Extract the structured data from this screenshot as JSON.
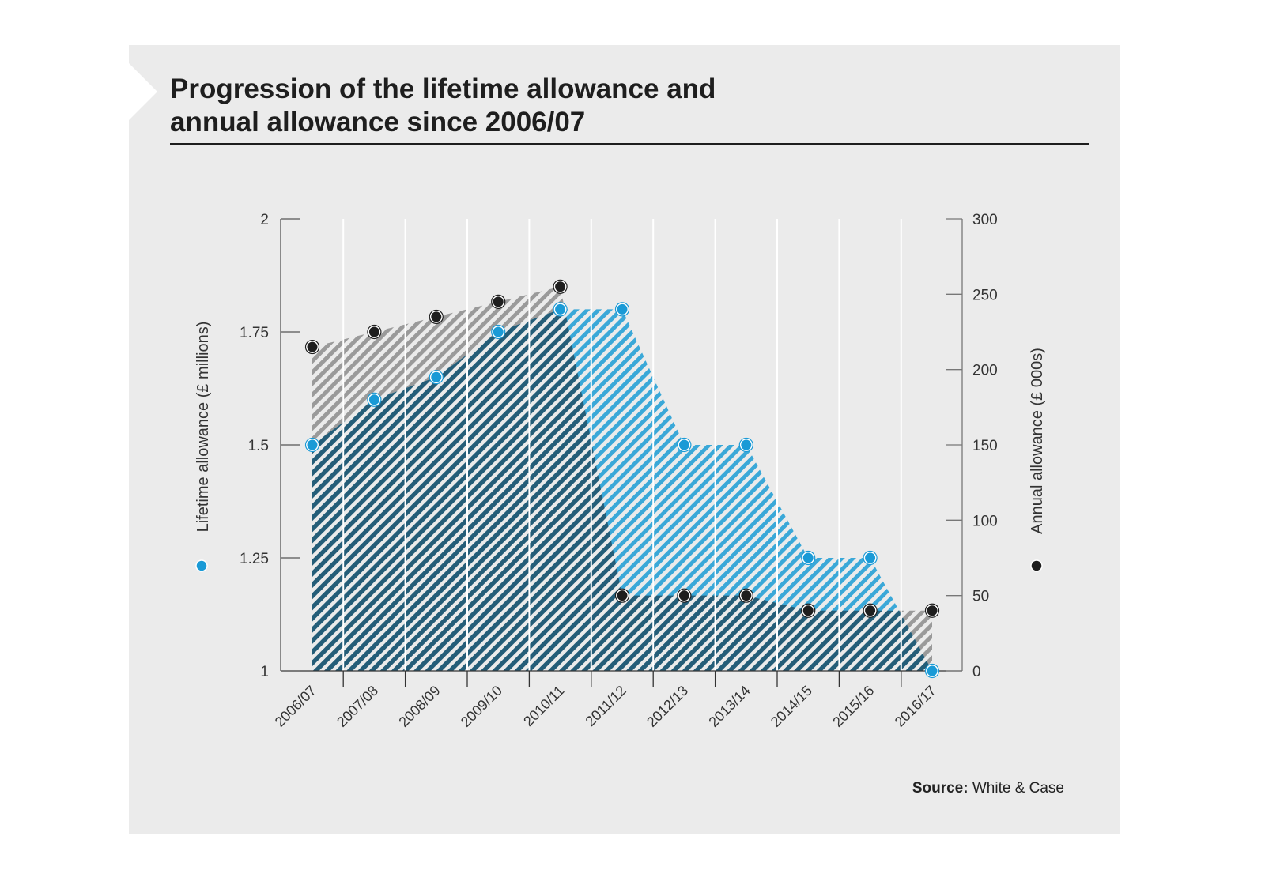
{
  "title_line1": "Progression of the lifetime allowance and",
  "title_line2": "annual allowance since 2006/07",
  "source_label": "Source:",
  "source_text": "White & Case",
  "chart_data": {
    "type": "area",
    "categories": [
      "2006/07",
      "2007/08",
      "2008/09",
      "2009/10",
      "2010/11",
      "2011/12",
      "2012/13",
      "2013/14",
      "2014/15",
      "2015/16",
      "2016/17"
    ],
    "series": [
      {
        "name": "Lifetime allowance (£ millions)",
        "axis": "left",
        "color": "#1a9ad6",
        "values": [
          1.5,
          1.6,
          1.65,
          1.75,
          1.8,
          1.8,
          1.5,
          1.5,
          1.25,
          1.25,
          1.0
        ]
      },
      {
        "name": "Annual allowance (£ 000s)",
        "axis": "right",
        "color": "#1e1e1e",
        "values": [
          215,
          225,
          235,
          245,
          255,
          50,
          50,
          50,
          40,
          40,
          40
        ]
      }
    ],
    "left_axis": {
      "label": "Lifetime allowance (£ millions)",
      "ylim": [
        1,
        2
      ],
      "ticks": [
        "1",
        "1.25",
        "1.5",
        "1.75",
        "2"
      ]
    },
    "right_axis": {
      "label": "Annual allowance  (£ 000s)",
      "ylim": [
        0,
        300
      ],
      "ticks": [
        "0",
        "50",
        "100",
        "150",
        "200",
        "250",
        "300"
      ]
    },
    "colors": {
      "overlap": "#245d78",
      "lifetime_area": "#3aa8d8",
      "annual_area": "#9a9a9a"
    }
  }
}
